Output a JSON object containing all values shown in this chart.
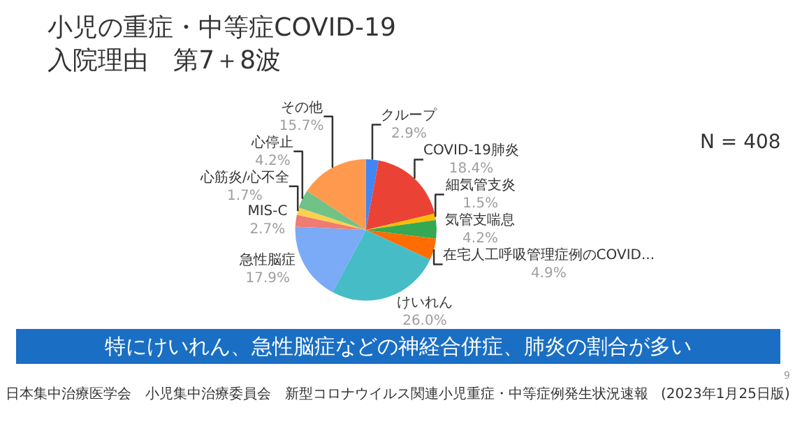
{
  "chart_data": {
    "type": "pie",
    "title": "小児の重症・中等症COVID-19\n入院理由　第7＋8波",
    "categories": [
      "クループ",
      "COVID-19肺炎",
      "細気管支炎",
      "気管支喘息",
      "在宅人工呼吸管理症例のCOVID...",
      "けいれん",
      "急性脳症",
      "MIS-C",
      "心筋炎/心不全",
      "心停止",
      "その他"
    ],
    "values": [
      2.9,
      18.4,
      1.5,
      4.2,
      4.9,
      26.0,
      17.9,
      2.7,
      1.7,
      4.2,
      15.7
    ],
    "colors": [
      "#4285f4",
      "#ea4335",
      "#fbbc04",
      "#34a853",
      "#ff6d01",
      "#46bdc6",
      "#7baaf7",
      "#f07b72",
      "#fcd04f",
      "#71c287",
      "#ff994d"
    ],
    "value_labels": [
      "2.9%",
      "18.4%",
      "1.5%",
      "4.2%",
      "4.9%",
      "26.0%",
      "17.9%",
      "2.7%",
      "1.7%",
      "4.2%",
      "15.7%"
    ],
    "annotations": [
      "N = 408",
      "特にけいれん、急性脳症などの神経合併症、肺炎の割合が多い",
      "日本集中治療医学会　小児集中治療委員会　新型コロナウイルス関連小児重症・中等症例発生状況速報",
      "(2023年1月25日版)",
      "9"
    ]
  }
}
